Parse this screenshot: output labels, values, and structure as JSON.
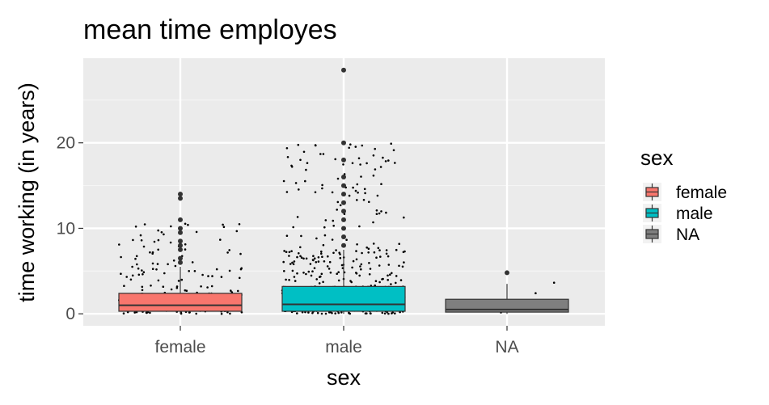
{
  "chart_data": {
    "type": "boxplot",
    "title": "mean time employes",
    "xlabel": "sex",
    "ylabel": "time working (in years)",
    "categories": [
      "female",
      "male",
      "NA"
    ],
    "y_ticks": [
      0,
      10,
      20
    ],
    "ylim": [
      -1.4,
      29.9
    ],
    "grid": true,
    "legend": {
      "title": "sex",
      "position": "right",
      "entries": [
        {
          "label": "female",
          "color": "#F8766D"
        },
        {
          "label": "male",
          "color": "#00BFC4"
        },
        {
          "label": "NA",
          "color": "#7F7F7F"
        }
      ]
    },
    "boxes": [
      {
        "category": "female",
        "min": 0,
        "q1": 0.3,
        "median": 1.0,
        "q3": 2.4,
        "max": 5.5,
        "outliers": [
          6.0,
          6.5,
          7.5,
          8.0,
          8.5,
          9.5,
          10.0,
          11.0,
          13.5,
          14.0
        ],
        "jitter_points": 260
      },
      {
        "category": "male",
        "min": 0,
        "q1": 0.3,
        "median": 1.1,
        "q3": 3.2,
        "max": 7.5,
        "outliers": [
          8.0,
          9.0,
          10.0,
          11.0,
          12.0,
          13.0,
          14.0,
          15.0,
          16.0,
          18.0,
          20.0,
          28.5
        ],
        "jitter_points": 620
      },
      {
        "category": "NA",
        "min": 0,
        "q1": 0.2,
        "median": 0.5,
        "q3": 1.7,
        "max": 3.5,
        "outliers": [
          4.8
        ],
        "jitter_points": 12
      }
    ],
    "colors": {
      "panel_bg": "#EBEBEB",
      "grid_major": "#FFFFFF",
      "grid_minor": "#F5F5F5",
      "box_outline": "#333333",
      "points": "#000000"
    }
  }
}
